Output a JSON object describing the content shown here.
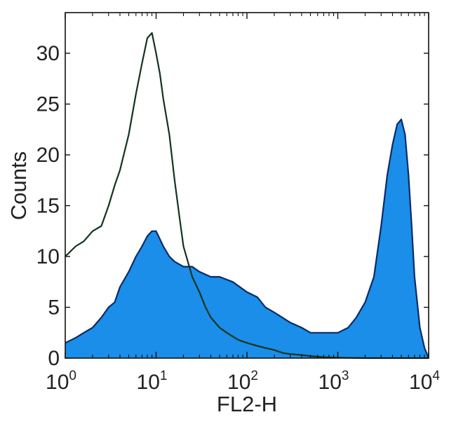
{
  "chart_data": {
    "type": "area",
    "title": "",
    "xlabel": "FL2-H",
    "ylabel": "Counts",
    "x_scale": "log",
    "xlim": [
      1,
      10000
    ],
    "ylim": [
      0,
      34
    ],
    "grid": false,
    "x_ticks": [
      {
        "base": "10",
        "exp": "0",
        "value": 1
      },
      {
        "base": "10",
        "exp": "1",
        "value": 10
      },
      {
        "base": "10",
        "exp": "2",
        "value": 100
      },
      {
        "base": "10",
        "exp": "3",
        "value": 1000
      },
      {
        "base": "10",
        "exp": "4",
        "value": 10000
      }
    ],
    "y_ticks": [
      "0",
      "5",
      "10",
      "15",
      "20",
      "25",
      "30"
    ],
    "colors": {
      "filled": "#1a8ee8",
      "filled_edge": "#0b2a66",
      "outline": "#14331f"
    },
    "series": [
      {
        "style": "outline",
        "x": [
          1,
          1.3,
          1.6,
          2,
          2.5,
          3,
          3.5,
          4,
          5,
          6,
          7,
          8,
          9,
          10,
          11,
          12,
          14,
          16,
          18,
          20,
          25,
          30,
          35,
          40,
          50,
          60,
          80,
          100,
          130,
          160,
          200,
          250,
          300,
          400,
          500,
          700,
          1000,
          2000,
          5000,
          10000
        ],
        "y": [
          10,
          11,
          11.5,
          12.5,
          13,
          15,
          17,
          18.5,
          22,
          26,
          29,
          31.5,
          32,
          30,
          28,
          25.5,
          22,
          17.5,
          14,
          11,
          8,
          6.5,
          5,
          4,
          3,
          2.5,
          1.8,
          1.5,
          1.2,
          1,
          0.8,
          0.5,
          0.4,
          0.3,
          0.2,
          0.1,
          0.05,
          0,
          0,
          0
        ]
      },
      {
        "style": "filled",
        "x": [
          1,
          1.3,
          1.6,
          2,
          2.5,
          3,
          3.5,
          4,
          5,
          6,
          7,
          8,
          9,
          10,
          12,
          14,
          16,
          20,
          25,
          30,
          40,
          50,
          70,
          100,
          130,
          160,
          200,
          300,
          400,
          500,
          700,
          1000,
          1300,
          1600,
          2000,
          2500,
          3000,
          3500,
          4000,
          4500,
          5000,
          5500,
          6000,
          6500,
          7000,
          8000,
          9000,
          10000
        ],
        "y": [
          1.5,
          2,
          2.5,
          3,
          4,
          5,
          5.5,
          7,
          8.5,
          10,
          11,
          12,
          12.5,
          12.5,
          11,
          10,
          9.5,
          9,
          9,
          8.5,
          8,
          8,
          7.5,
          6.5,
          6,
          5,
          4.5,
          3.5,
          3,
          2.5,
          2.5,
          2.5,
          3,
          4,
          5.5,
          8,
          13,
          18,
          21,
          23,
          23.5,
          22,
          18,
          13,
          8,
          3,
          1,
          0
        ]
      }
    ]
  }
}
